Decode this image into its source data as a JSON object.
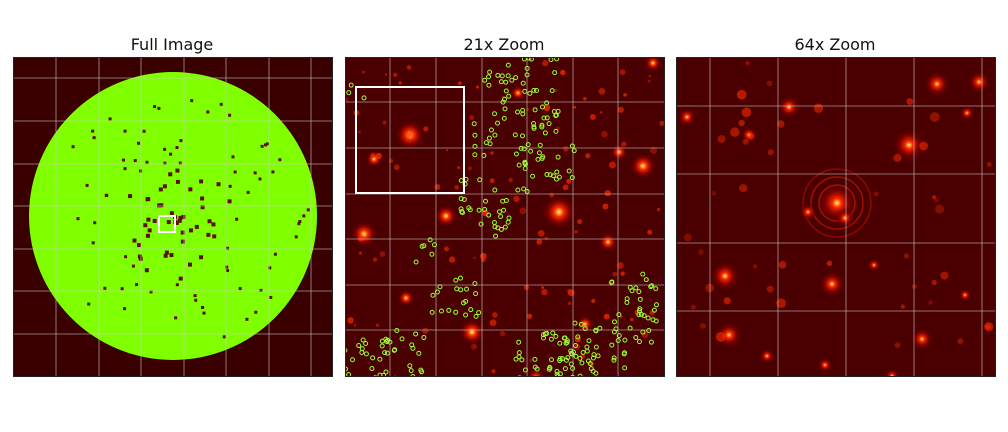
{
  "panels": [
    {
      "title": "Full Image"
    },
    {
      "title": "21x Zoom"
    },
    {
      "title": "64x Zoom"
    }
  ],
  "colors": {
    "background": "#3a0000",
    "disk": "#7fff00",
    "marker": "#99ff33",
    "grid": "#c8c8c8",
    "zoom_box": "#ffffff"
  }
}
